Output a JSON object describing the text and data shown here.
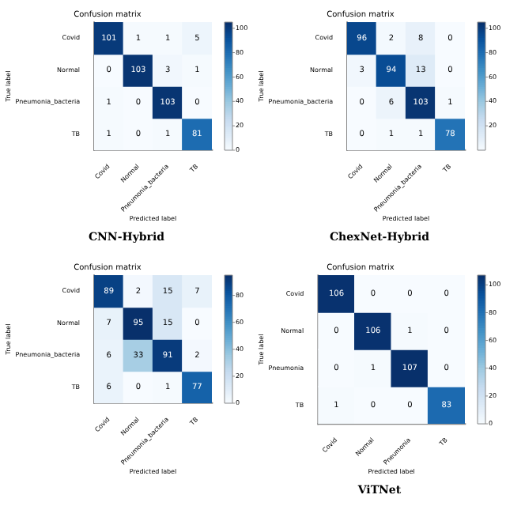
{
  "chart_data": [
    {
      "type": "heatmap",
      "title": "Confusion matrix",
      "xlabel": "Predicted label",
      "ylabel": "True label",
      "categories": [
        "Covid",
        "Normal",
        "Pneumonia_bacteria",
        "TB"
      ],
      "y_categories": [
        "Covid",
        "Normal",
        "Pneumonia_bacteria",
        "TB"
      ],
      "cells": [
        [
          101,
          1,
          1,
          5
        ],
        [
          0,
          103,
          3,
          1
        ],
        [
          1,
          0,
          103,
          0
        ],
        [
          1,
          0,
          1,
          81
        ]
      ],
      "data_labels": true,
      "clim": [
        0,
        105
      ],
      "cticks": [
        0,
        20,
        40,
        60,
        80,
        100
      ],
      "annotations": [
        "CNN-Hybrid"
      ]
    },
    {
      "type": "heatmap",
      "title": "Confusion matrix",
      "xlabel": "Predicted label",
      "ylabel": "True label",
      "categories": [
        "Covid",
        "Normal",
        "Pneumonia_bacteria",
        "TB"
      ],
      "y_categories": [
        "Covid",
        "Normal",
        "Pneumonia_bacteria",
        "TB"
      ],
      "cells": [
        [
          96,
          2,
          8,
          0
        ],
        [
          3,
          94,
          13,
          0
        ],
        [
          0,
          6,
          103,
          1
        ],
        [
          0,
          1,
          1,
          78
        ]
      ],
      "data_labels": true,
      "clim": [
        0,
        105
      ],
      "cticks": [
        20,
        40,
        60,
        80,
        100
      ],
      "annotations": [
        "ChexNet-Hybrid"
      ]
    },
    {
      "type": "heatmap",
      "title": "Confusion matrix",
      "xlabel": "Predicted label",
      "ylabel": "True label",
      "categories": [
        "Covid",
        "Normal",
        "Pneumonia_bacteria",
        "TB"
      ],
      "y_categories": [
        "Covid",
        "Normal",
        "Pneumonia_bacteria",
        "TB"
      ],
      "cells": [
        [
          89,
          2,
          15,
          7
        ],
        [
          7,
          95,
          15,
          0
        ],
        [
          6,
          33,
          91,
          2
        ],
        [
          6,
          0,
          1,
          77
        ]
      ],
      "clim": [
        0,
        95
      ],
      "cticks": [
        0,
        20,
        40,
        60,
        80
      ],
      "data_labels": true
    },
    {
      "type": "heatmap",
      "title": "Confusion matrix",
      "xlabel": "Predicted label",
      "ylabel": "True label",
      "categories": [
        "Covid",
        "Normal",
        "Pneumonia",
        "TB"
      ],
      "y_categories": [
        "Covid",
        "Normal",
        "Pneumonia",
        "TB"
      ],
      "cells": [
        [
          106,
          0,
          0,
          0
        ],
        [
          0,
          106,
          1,
          0
        ],
        [
          0,
          1,
          107,
          0
        ],
        [
          1,
          0,
          0,
          83
        ]
      ],
      "data_labels": true,
      "clim": [
        0,
        107
      ],
      "cticks": [
        0,
        20,
        40,
        60,
        80,
        100
      ],
      "annotations": [
        "ViTNet"
      ]
    }
  ]
}
